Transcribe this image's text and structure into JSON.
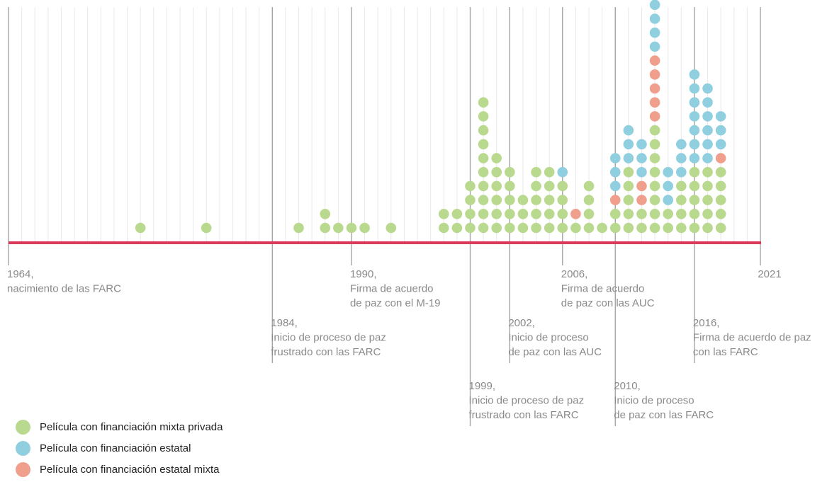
{
  "chart_data": {
    "type": "scatter",
    "subtype": "dot-timeline",
    "x_range": [
      1964,
      2021
    ],
    "categories": [
      {
        "key": "mixta_privada",
        "name": "Película con financiación mixta privada",
        "color": "#b9d98f"
      },
      {
        "key": "estatal",
        "name": "Película con financiación estatal",
        "color": "#8fcfe0"
      },
      {
        "key": "estatal_mixta",
        "name": "Película con financiación estatal mixta",
        "color": "#ef9f8c"
      }
    ],
    "dots_per_year": [
      {
        "year": 1974,
        "stack": [
          "mixta_privada"
        ]
      },
      {
        "year": 1979,
        "stack": [
          "mixta_privada"
        ]
      },
      {
        "year": 1986,
        "stack": [
          "mixta_privada"
        ]
      },
      {
        "year": 1988,
        "stack": [
          "mixta_privada",
          "mixta_privada"
        ]
      },
      {
        "year": 1989,
        "stack": [
          "mixta_privada"
        ]
      },
      {
        "year": 1990,
        "stack": [
          "mixta_privada"
        ]
      },
      {
        "year": 1991,
        "stack": [
          "mixta_privada"
        ]
      },
      {
        "year": 1993,
        "stack": [
          "mixta_privada"
        ]
      },
      {
        "year": 1997,
        "stack": [
          "mixta_privada",
          "mixta_privada"
        ]
      },
      {
        "year": 1998,
        "stack": [
          "mixta_privada",
          "mixta_privada"
        ]
      },
      {
        "year": 1999,
        "stack": [
          "mixta_privada",
          "mixta_privada",
          "mixta_privada",
          "mixta_privada"
        ]
      },
      {
        "year": 2000,
        "stack": [
          "mixta_privada",
          "mixta_privada",
          "mixta_privada",
          "mixta_privada",
          "mixta_privada",
          "mixta_privada",
          "mixta_privada",
          "mixta_privada",
          "mixta_privada",
          "mixta_privada"
        ]
      },
      {
        "year": 2001,
        "stack": [
          "mixta_privada",
          "mixta_privada",
          "mixta_privada",
          "mixta_privada",
          "mixta_privada",
          "mixta_privada"
        ]
      },
      {
        "year": 2002,
        "stack": [
          "mixta_privada",
          "mixta_privada",
          "mixta_privada",
          "mixta_privada",
          "mixta_privada"
        ]
      },
      {
        "year": 2003,
        "stack": [
          "mixta_privada",
          "mixta_privada",
          "mixta_privada"
        ]
      },
      {
        "year": 2004,
        "stack": [
          "mixta_privada",
          "mixta_privada",
          "mixta_privada",
          "mixta_privada",
          "mixta_privada"
        ]
      },
      {
        "year": 2005,
        "stack": [
          "mixta_privada",
          "mixta_privada",
          "mixta_privada",
          "mixta_privada",
          "mixta_privada"
        ]
      },
      {
        "year": 2006,
        "stack": [
          "mixta_privada",
          "mixta_privada",
          "mixta_privada",
          "mixta_privada",
          "estatal"
        ]
      },
      {
        "year": 2007,
        "stack": [
          "mixta_privada",
          "estatal_mixta"
        ]
      },
      {
        "year": 2008,
        "stack": [
          "mixta_privada",
          "mixta_privada",
          "mixta_privada",
          "mixta_privada"
        ]
      },
      {
        "year": 2009,
        "stack": [
          "mixta_privada"
        ]
      },
      {
        "year": 2010,
        "stack": [
          "mixta_privada",
          "mixta_privada",
          "estatal_mixta",
          "estatal",
          "estatal",
          "estatal"
        ]
      },
      {
        "year": 2011,
        "stack": [
          "mixta_privada",
          "mixta_privada",
          "mixta_privada",
          "mixta_privada",
          "mixta_privada",
          "estatal",
          "estatal",
          "estatal"
        ]
      },
      {
        "year": 2012,
        "stack": [
          "mixta_privada",
          "mixta_privada",
          "estatal_mixta",
          "estatal_mixta",
          "estatal",
          "estatal",
          "estatal"
        ]
      },
      {
        "year": 2013,
        "stack": [
          "mixta_privada",
          "mixta_privada",
          "mixta_privada",
          "mixta_privada",
          "mixta_privada",
          "mixta_privada",
          "mixta_privada",
          "mixta_privada",
          "estatal_mixta",
          "estatal_mixta",
          "estatal_mixta",
          "estatal_mixta",
          "estatal_mixta",
          "estatal",
          "estatal",
          "estatal",
          "estatal",
          "estatal"
        ]
      },
      {
        "year": 2014,
        "stack": [
          "mixta_privada",
          "mixta_privada",
          "estatal",
          "estatal",
          "estatal"
        ]
      },
      {
        "year": 2015,
        "stack": [
          "mixta_privada",
          "mixta_privada",
          "mixta_privada",
          "mixta_privada",
          "estatal",
          "estatal",
          "estatal"
        ]
      },
      {
        "year": 2016,
        "stack": [
          "mixta_privada",
          "mixta_privada",
          "mixta_privada",
          "mixta_privada",
          "mixta_privada",
          "estatal",
          "estatal",
          "estatal",
          "estatal",
          "estatal",
          "estatal",
          "estatal"
        ]
      },
      {
        "year": 2017,
        "stack": [
          "mixta_privada",
          "mixta_privada",
          "mixta_privada",
          "mixta_privada",
          "mixta_privada",
          "estatal",
          "estatal",
          "estatal",
          "estatal",
          "estatal",
          "estatal"
        ]
      },
      {
        "year": 2018,
        "stack": [
          "mixta_privada",
          "mixta_privada",
          "mixta_privada",
          "mixta_privada",
          "mixta_privada",
          "estatal_mixta",
          "estatal",
          "estatal",
          "estatal"
        ]
      }
    ],
    "events": [
      {
        "year": 1964,
        "level": 0,
        "year_label": "1964,",
        "lines": [
          "nacimiento de las FARC"
        ]
      },
      {
        "year": 1984,
        "level": 2,
        "year_label": "1984,",
        "lines": [
          "Inicio de proceso de paz",
          "frustrado con las FARC"
        ]
      },
      {
        "year": 1990,
        "level": 0,
        "year_label": "1990,",
        "lines": [
          "Firma de acuerdo",
          "de paz con el M-19"
        ]
      },
      {
        "year": 1999,
        "level": 3,
        "year_label": "1999,",
        "lines": [
          "Inicio de proceso de paz",
          "frustrado con las FARC"
        ]
      },
      {
        "year": 2002,
        "level": 2,
        "year_label": "2002,",
        "lines": [
          "Inicio de proceso",
          "de paz con las AUC"
        ]
      },
      {
        "year": 2006,
        "level": 0,
        "year_label": "2006,",
        "lines": [
          "Firma de acuerdo",
          "de paz con las AUC"
        ]
      },
      {
        "year": 2010,
        "level": 3,
        "year_label": "2010,",
        "lines": [
          "Inicio de proceso",
          "de paz con las FARC"
        ]
      },
      {
        "year": 2016,
        "level": 2,
        "year_label": "2016,",
        "lines": [
          "Firma de acuerdo de paz",
          "con las FARC"
        ]
      },
      {
        "year": 2021,
        "level": 0,
        "year_label": "2021",
        "lines": []
      }
    ],
    "timeline_color": "#d83a5a",
    "grid": true,
    "legend_position": "bottom-left"
  }
}
